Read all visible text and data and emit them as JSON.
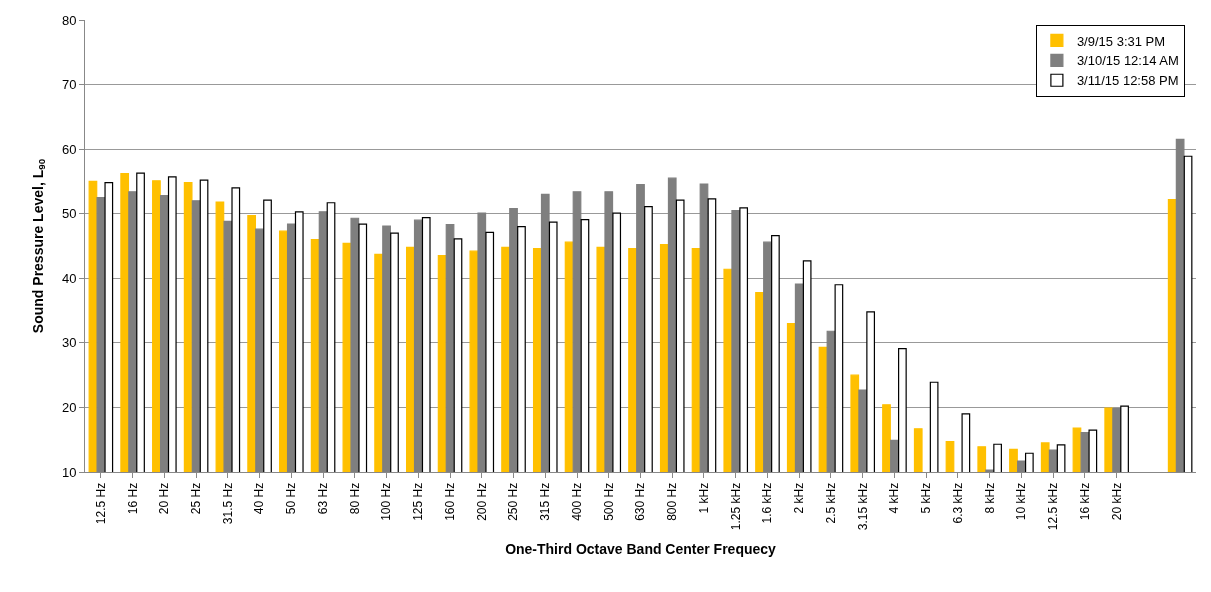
{
  "chart_data": {
    "type": "bar",
    "ylabel": "Sound Pressure Level, L$_{90}$",
    "xlabel": "One-Third Octave Band Center Frequecy",
    "categories": [
      "12.5 Hz",
      "16 Hz",
      "20 Hz",
      "25 Hz",
      "31.5 Hz",
      "40 Hz",
      "50 Hz",
      "63 Hz",
      "80 Hz",
      "100 Hz",
      "125 Hz",
      "160 Hz",
      "200 Hz",
      "250 Hz",
      "315 Hz",
      "400 Hz",
      "500 Hz",
      "630 Hz",
      "800 Hz",
      "1 kHz",
      "1.25 kHz",
      "1.6 kHz",
      "2 kHz",
      "2.5 kHz",
      "3.15 kHz",
      "4 kHz",
      "5 kHz",
      "6.3 kHz",
      "8 kHz",
      "10 kHz",
      "12.5 kHz",
      "16 kHz",
      "20 kHz",
      null,
      null
    ],
    "series": [
      {
        "name": "3/9/15 3:31 PM",
        "color": "#ffc000",
        "values": [
          55,
          56.2,
          55.1,
          54.8,
          51.8,
          49.7,
          47.3,
          46,
          45.4,
          43.7,
          44.8,
          43.5,
          44.2,
          44.8,
          44.6,
          45.6,
          44.8,
          44.6,
          45.2,
          44.6,
          41.4,
          37.8,
          33,
          29.3,
          25,
          20.4,
          16.7,
          14.7,
          13.9,
          13.5,
          14.5,
          16.8,
          19.9,
          null,
          52.2
        ]
      },
      {
        "name": "3/10/15 12:14 AM",
        "color": "#7f7f7f",
        "values": [
          52.5,
          53.4,
          52.8,
          52,
          48.8,
          47.6,
          48.4,
          50.3,
          49.3,
          48.1,
          49,
          48.3,
          50.1,
          50.8,
          53,
          53.4,
          53.4,
          54.5,
          55.5,
          54.6,
          50.5,
          45.6,
          39.1,
          31.8,
          22.7,
          14.9,
          null,
          null,
          10.3,
          11.7,
          13.4,
          16.1,
          19.8,
          null,
          61.5
        ]
      },
      {
        "name": "3/11/15 12:58 PM",
        "color": "#ffffff",
        "values": [
          54.8,
          56.3,
          55.7,
          55.2,
          54,
          52.1,
          50.3,
          51.7,
          48.4,
          47,
          49.4,
          46.1,
          47.1,
          48,
          48.7,
          49.1,
          50.1,
          51.1,
          52.1,
          52.3,
          50.9,
          46.6,
          42.7,
          39,
          34.8,
          29.1,
          23.9,
          19,
          14.3,
          12.9,
          14.2,
          16.5,
          20.2,
          null,
          58.9
        ]
      }
    ],
    "ylim": [
      10,
      80
    ],
    "yticks": [
      10,
      20,
      30,
      40,
      50,
      60,
      70,
      80
    ],
    "grid": "y",
    "legend": "top right"
  }
}
